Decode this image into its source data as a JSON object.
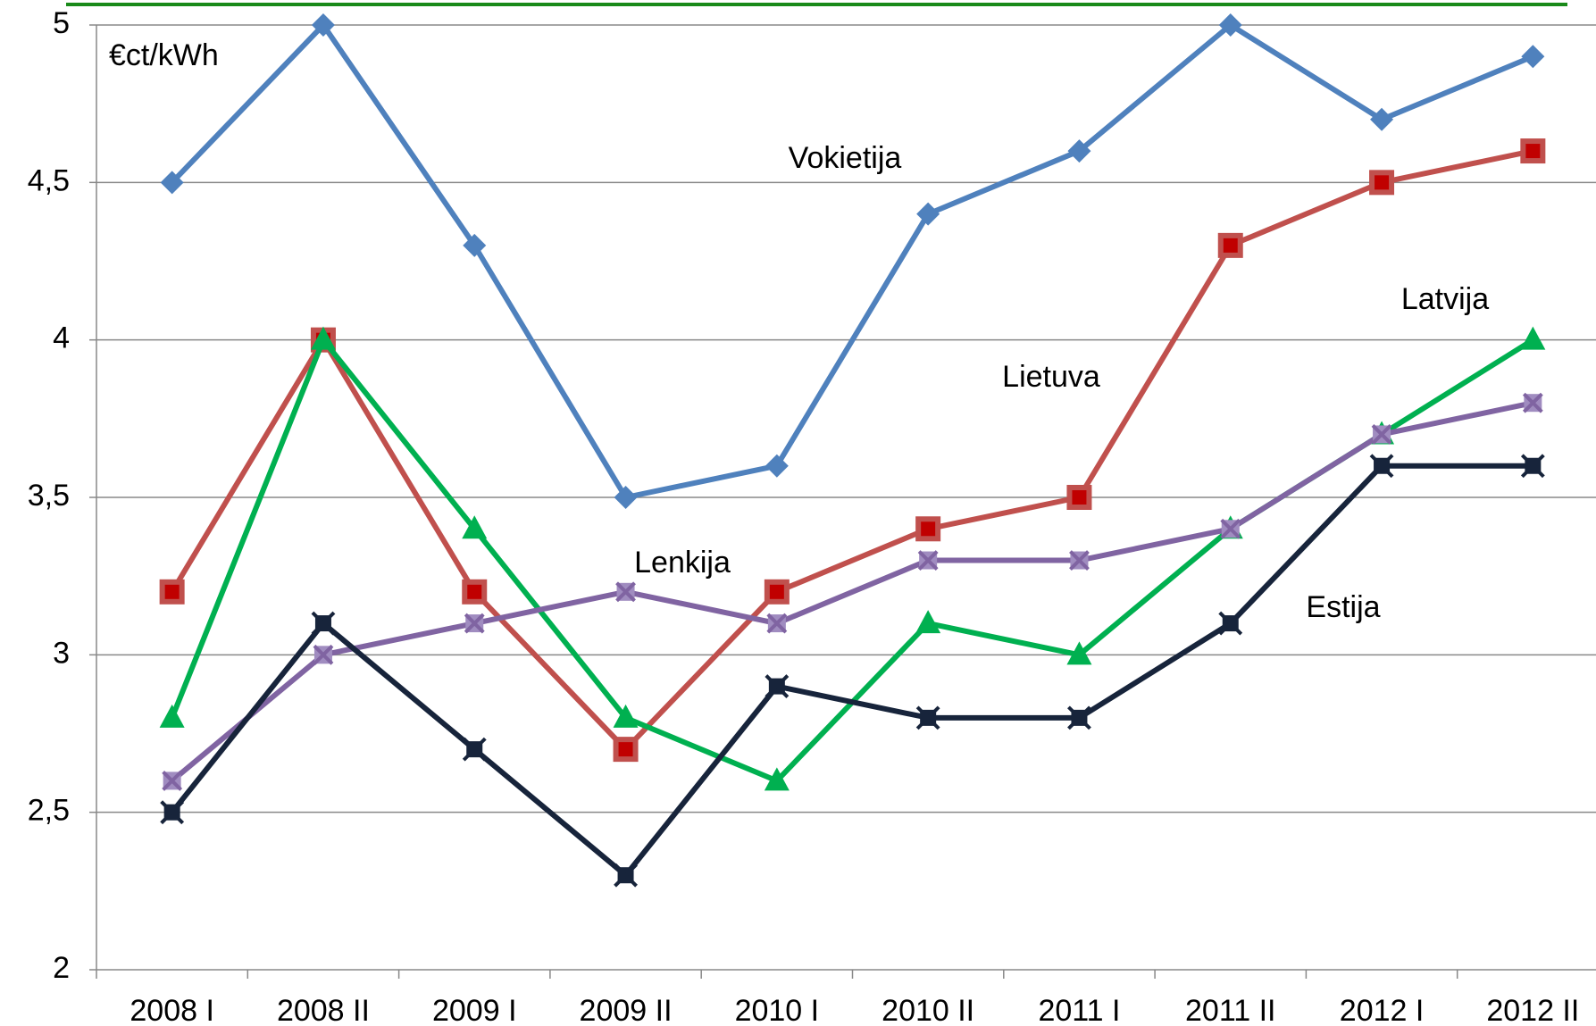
{
  "chart_data": {
    "type": "line",
    "y_label": "€ct/kWh",
    "categories": [
      "2008 I",
      "2008 II",
      "2009 I",
      "2009 II",
      "2010 I",
      "2010 II",
      "2011 I",
      "2011 II",
      "2012 I",
      "2012 II"
    ],
    "series": [
      {
        "name": "Vokietija",
        "color": "#4f81bd",
        "marker": "diamond",
        "values": [
          4.5,
          5,
          4.3,
          3.5,
          3.6,
          4.4,
          4.6,
          5,
          4.7,
          4.9
        ]
      },
      {
        "name": "Lietuva",
        "color": "#c0504d",
        "marker": "square",
        "values": [
          3.2,
          4.0,
          3.2,
          2.7,
          3.2,
          3.4,
          3.5,
          4.3,
          4.5,
          4.6
        ]
      },
      {
        "name": "Latvija",
        "color": "#00b050",
        "marker": "triangle",
        "values": [
          2.8,
          4.0,
          3.4,
          2.8,
          2.6,
          3.1,
          3.0,
          3.4,
          3.7,
          4.0
        ]
      },
      {
        "name": "Lenkija",
        "color": "#8064a2",
        "marker": "x",
        "values": [
          2.6,
          3.0,
          3.1,
          3.2,
          3.1,
          3.3,
          3.3,
          3.4,
          3.7,
          3.8
        ]
      },
      {
        "name": "Estija",
        "color": "#17243b",
        "marker": "star",
        "values": [
          2.5,
          3.1,
          2.7,
          2.3,
          2.9,
          2.8,
          2.8,
          3.1,
          3.6,
          3.6
        ]
      }
    ],
    "ylim": [
      2,
      5
    ],
    "yticks": [
      2,
      {
        "value": 2.5,
        "label": "2,5"
      },
      3,
      {
        "value": 3.5,
        "label": "3,5"
      },
      4,
      {
        "value": 4.5,
        "label": "4,5"
      },
      5
    ],
    "grid": true
  }
}
